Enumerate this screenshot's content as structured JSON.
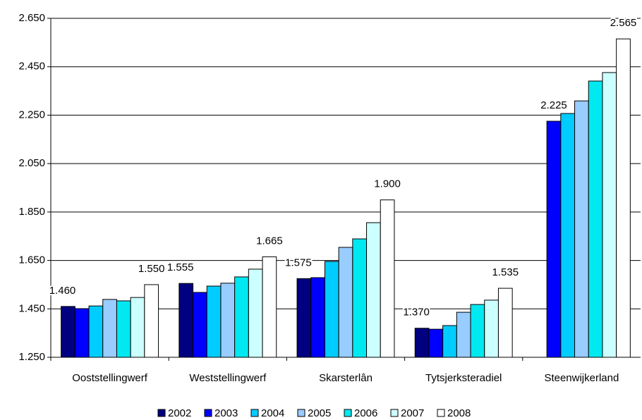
{
  "chart_data": {
    "type": "bar",
    "categories": [
      "Ooststellingwerf",
      "Weststellingwerf",
      "Skarsterlân",
      "Tytsjerksteradiel",
      "Steenwijkerland"
    ],
    "series": [
      {
        "name": "2002",
        "color": "#000080",
        "values": [
          1460,
          1555,
          1575,
          1370,
          null
        ],
        "value_labels": [
          "1.460",
          "1.555",
          "1.575",
          "1.370",
          null
        ]
      },
      {
        "name": "2003",
        "color": "#0000ff",
        "values": [
          1451,
          1518,
          1579,
          1366,
          2225
        ],
        "value_labels": [
          null,
          null,
          null,
          null,
          "2.225"
        ]
      },
      {
        "name": "2004",
        "color": "#00ccff",
        "values": [
          1462,
          1544,
          1646,
          1381,
          2257
        ]
      },
      {
        "name": "2005",
        "color": "#99ccff",
        "values": [
          1489,
          1556,
          1704,
          1436,
          2309
        ]
      },
      {
        "name": "2006",
        "color": "#00e8f0",
        "values": [
          1483,
          1582,
          1739,
          1468,
          2391
        ]
      },
      {
        "name": "2007",
        "color": "#ccffff",
        "values": [
          1497,
          1614,
          1806,
          1486,
          2426
        ]
      },
      {
        "name": "2008",
        "color": "#ffffff",
        "values": [
          1550,
          1665,
          1900,
          1535,
          2565
        ],
        "value_labels": [
          "1.550",
          "1.665",
          "1.900",
          "1.535",
          "2.565"
        ]
      }
    ],
    "ylim": [
      1250,
      2650
    ],
    "yticks": [
      {
        "value": 1250,
        "label": "1.250"
      },
      {
        "value": 1450,
        "label": "1.450"
      },
      {
        "value": 1650,
        "label": "1.650"
      },
      {
        "value": 1850,
        "label": "1.850"
      },
      {
        "value": 2050,
        "label": "2.050"
      },
      {
        "value": 2250,
        "label": "2.250"
      },
      {
        "value": 2450,
        "label": "2.450"
      },
      {
        "value": 2650,
        "label": "2.650"
      }
    ],
    "grid": true,
    "legend": "bottom"
  }
}
